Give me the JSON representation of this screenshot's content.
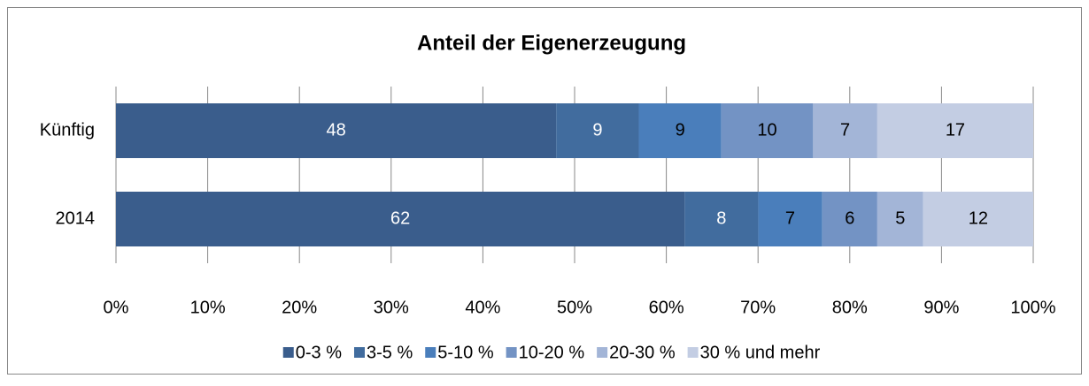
{
  "chart_data": {
    "type": "stacked_bar_horizontal",
    "title": "Anteil der Eigenerzeugung",
    "categories": [
      "Künftig",
      "2014"
    ],
    "series": [
      {
        "name": "0-3 %",
        "color": "#3a5d8c",
        "label_color": "#ffffff",
        "values": [
          48,
          62
        ]
      },
      {
        "name": "3-5 %",
        "color": "#416c9e",
        "label_color": "#ffffff",
        "values": [
          9,
          8
        ]
      },
      {
        "name": "5-10 %",
        "color": "#4a7ebb",
        "label_color": "#000000",
        "values": [
          9,
          7
        ]
      },
      {
        "name": "10-20 %",
        "color": "#7393c4",
        "label_color": "#000000",
        "values": [
          10,
          6
        ]
      },
      {
        "name": "20-30 %",
        "color": "#a3b5d7",
        "label_color": "#000000",
        "values": [
          7,
          5
        ]
      },
      {
        "name": "30 % und mehr",
        "color": "#c3cde3",
        "label_color": "#000000",
        "values": [
          17,
          12
        ]
      }
    ],
    "xlim": [
      0,
      100
    ],
    "xticks": [
      {
        "value": 0,
        "label": "0%"
      },
      {
        "value": 10,
        "label": "10%"
      },
      {
        "value": 20,
        "label": "20%"
      },
      {
        "value": 30,
        "label": "30%"
      },
      {
        "value": 40,
        "label": "40%"
      },
      {
        "value": 50,
        "label": "50%"
      },
      {
        "value": 60,
        "label": "60%"
      },
      {
        "value": 70,
        "label": "70%"
      },
      {
        "value": 80,
        "label": "80%"
      },
      {
        "value": 90,
        "label": "90%"
      },
      {
        "value": 100,
        "label": "100%"
      }
    ],
    "grid": true,
    "legend": "bottom"
  }
}
